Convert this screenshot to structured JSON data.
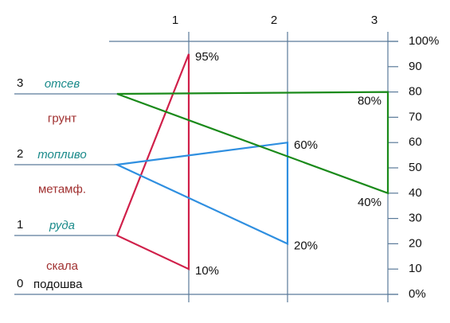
{
  "columns": [
    "1",
    "2",
    "3"
  ],
  "scale": {
    "range": [
      0,
      100
    ],
    "ticks": [
      {
        "value": 0,
        "label": "0%"
      },
      10,
      20,
      30,
      40,
      50,
      60,
      70,
      80,
      90,
      {
        "value": 100,
        "label": "100%"
      }
    ]
  },
  "levels": [
    {
      "number": "0",
      "name": "подошва"
    },
    {
      "number": "1",
      "name": "руда",
      "layer": "скала",
      "triangle": {
        "color": "#d0204a",
        "values": [
          95,
          10
        ],
        "value_labels": [
          "95%",
          "10%"
        ]
      }
    },
    {
      "number": "2",
      "name": "топливо",
      "layer": "метамф.",
      "triangle": {
        "color": "#2f8fe0",
        "values": [
          60,
          20
        ],
        "value_labels": [
          "60%",
          "20%"
        ]
      }
    },
    {
      "number": "3",
      "name": "отсев",
      "layer": "грунт",
      "triangle": {
        "color": "#1a8a1a",
        "values": [
          80,
          40
        ],
        "value_labels": [
          "80%",
          "40%"
        ]
      }
    }
  ]
}
